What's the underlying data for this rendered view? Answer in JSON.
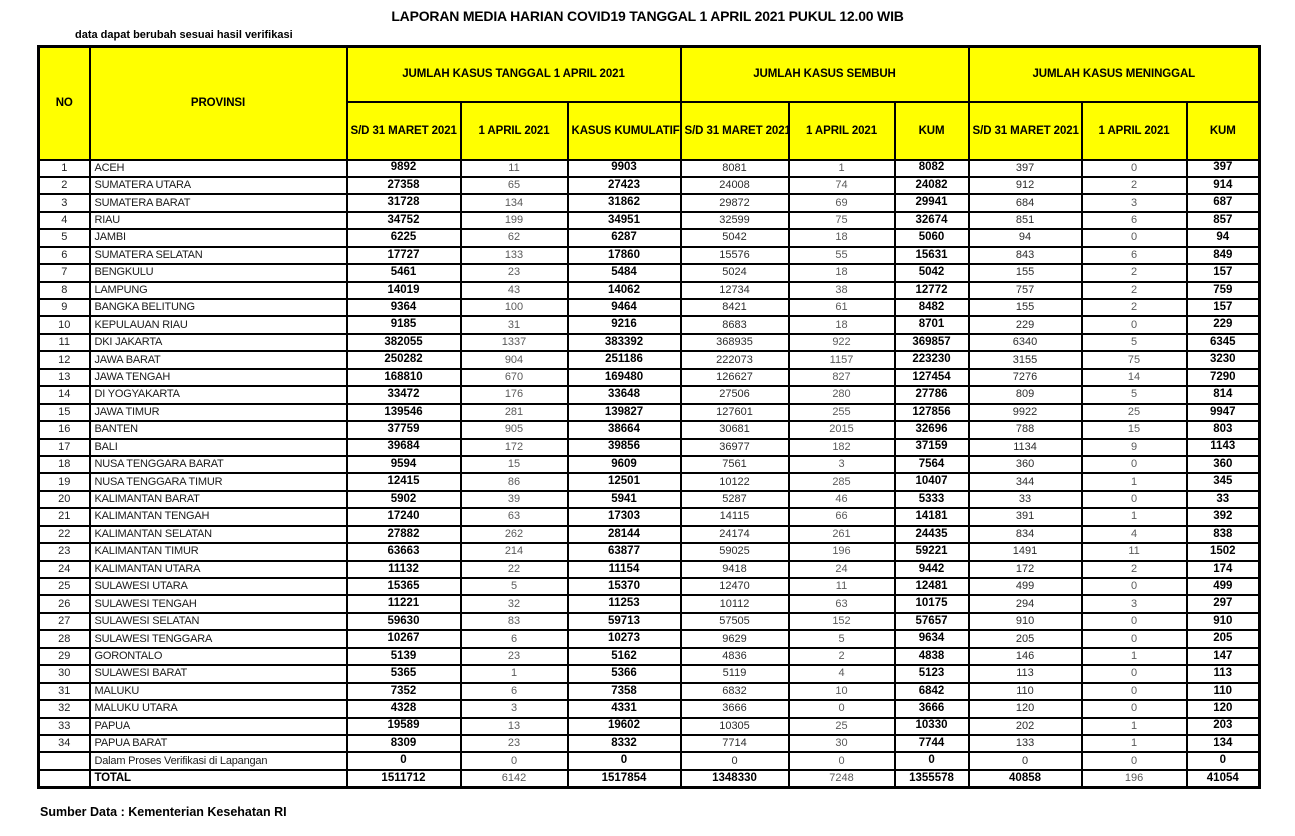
{
  "title": "LAPORAN MEDIA HARIAN COVID19 TANGGAL 1 APRIL 2021 PUKUL 12.00 WIB",
  "note": "data dapat berubah sesuai hasil verifikasi",
  "source": "Sumber Data : Kementerian Kesehatan RI",
  "colors": {
    "header_bg": "#FFFF00",
    "border": "#000000",
    "bold_value": "#000000",
    "muted_value": "#5a5a5a"
  },
  "table": {
    "col_no": "NO",
    "col_provinsi": "PROVINSI",
    "groups": [
      {
        "label": "JUMLAH KASUS TANGGAL 1 APRIL 2021",
        "sub": [
          "S/D 31 MARET 2021",
          "1 APRIL 2021",
          "KASUS KUMULATIF"
        ]
      },
      {
        "label": "JUMLAH KASUS SEMBUH",
        "sub": [
          "S/D 31 MARET 2021",
          "1 APRIL 2021",
          "KUM"
        ]
      },
      {
        "label": "JUMLAH KASUS MENINGGAL",
        "sub": [
          "S/D 31 MARET 2021",
          "1 APRIL 2021",
          "KUM"
        ]
      }
    ],
    "rows": [
      [
        1,
        "ACEH",
        9892,
        11,
        9903,
        8081,
        1,
        8082,
        397,
        0,
        397
      ],
      [
        2,
        "SUMATERA UTARA",
        27358,
        65,
        27423,
        24008,
        74,
        24082,
        912,
        2,
        914
      ],
      [
        3,
        "SUMATERA BARAT",
        31728,
        134,
        31862,
        29872,
        69,
        29941,
        684,
        3,
        687
      ],
      [
        4,
        "RIAU",
        34752,
        199,
        34951,
        32599,
        75,
        32674,
        851,
        6,
        857
      ],
      [
        5,
        "JAMBI",
        6225,
        62,
        6287,
        5042,
        18,
        5060,
        94,
        0,
        94
      ],
      [
        6,
        "SUMATERA SELATAN",
        17727,
        133,
        17860,
        15576,
        55,
        15631,
        843,
        6,
        849
      ],
      [
        7,
        "BENGKULU",
        5461,
        23,
        5484,
        5024,
        18,
        5042,
        155,
        2,
        157
      ],
      [
        8,
        "LAMPUNG",
        14019,
        43,
        14062,
        12734,
        38,
        12772,
        757,
        2,
        759
      ],
      [
        9,
        "BANGKA BELITUNG",
        9364,
        100,
        9464,
        8421,
        61,
        8482,
        155,
        2,
        157
      ],
      [
        10,
        "KEPULAUAN RIAU",
        9185,
        31,
        9216,
        8683,
        18,
        8701,
        229,
        0,
        229
      ],
      [
        11,
        "DKI JAKARTA",
        382055,
        1337,
        383392,
        368935,
        922,
        369857,
        6340,
        5,
        6345
      ],
      [
        12,
        "JAWA BARAT",
        250282,
        904,
        251186,
        222073,
        1157,
        223230,
        3155,
        75,
        3230
      ],
      [
        13,
        "JAWA TENGAH",
        168810,
        670,
        169480,
        126627,
        827,
        127454,
        7276,
        14,
        7290
      ],
      [
        14,
        "DI YOGYAKARTA",
        33472,
        176,
        33648,
        27506,
        280,
        27786,
        809,
        5,
        814
      ],
      [
        15,
        "JAWA TIMUR",
        139546,
        281,
        139827,
        127601,
        255,
        127856,
        9922,
        25,
        9947
      ],
      [
        16,
        "BANTEN",
        37759,
        905,
        38664,
        30681,
        2015,
        32696,
        788,
        15,
        803
      ],
      [
        17,
        "BALI",
        39684,
        172,
        39856,
        36977,
        182,
        37159,
        1134,
        9,
        1143
      ],
      [
        18,
        "NUSA TENGGARA BARAT",
        9594,
        15,
        9609,
        7561,
        3,
        7564,
        360,
        0,
        360
      ],
      [
        19,
        "NUSA TENGGARA TIMUR",
        12415,
        86,
        12501,
        10122,
        285,
        10407,
        344,
        1,
        345
      ],
      [
        20,
        "KALIMANTAN BARAT",
        5902,
        39,
        5941,
        5287,
        46,
        5333,
        33,
        0,
        33
      ],
      [
        21,
        "KALIMANTAN TENGAH",
        17240,
        63,
        17303,
        14115,
        66,
        14181,
        391,
        1,
        392
      ],
      [
        22,
        "KALIMANTAN SELATAN",
        27882,
        262,
        28144,
        24174,
        261,
        24435,
        834,
        4,
        838
      ],
      [
        23,
        "KALIMANTAN TIMUR",
        63663,
        214,
        63877,
        59025,
        196,
        59221,
        1491,
        11,
        1502
      ],
      [
        24,
        "KALIMANTAN UTARA",
        11132,
        22,
        11154,
        9418,
        24,
        9442,
        172,
        2,
        174
      ],
      [
        25,
        "SULAWESI UTARA",
        15365,
        5,
        15370,
        12470,
        11,
        12481,
        499,
        0,
        499
      ],
      [
        26,
        "SULAWESI TENGAH",
        11221,
        32,
        11253,
        10112,
        63,
        10175,
        294,
        3,
        297
      ],
      [
        27,
        "SULAWESI SELATAN",
        59630,
        83,
        59713,
        57505,
        152,
        57657,
        910,
        0,
        910
      ],
      [
        28,
        "SULAWESI TENGGARA",
        10267,
        6,
        10273,
        9629,
        5,
        9634,
        205,
        0,
        205
      ],
      [
        29,
        "GORONTALO",
        5139,
        23,
        5162,
        4836,
        2,
        4838,
        146,
        1,
        147
      ],
      [
        30,
        "SULAWESI BARAT",
        5365,
        1,
        5366,
        5119,
        4,
        5123,
        113,
        0,
        113
      ],
      [
        31,
        "MALUKU",
        7352,
        6,
        7358,
        6832,
        10,
        6842,
        110,
        0,
        110
      ],
      [
        32,
        "MALUKU UTARA",
        4328,
        3,
        4331,
        3666,
        0,
        3666,
        120,
        0,
        120
      ],
      [
        33,
        "PAPUA",
        19589,
        13,
        19602,
        10305,
        25,
        10330,
        202,
        1,
        203
      ],
      [
        34,
        "PAPUA BARAT",
        8309,
        23,
        8332,
        7714,
        30,
        7744,
        133,
        1,
        134
      ]
    ],
    "verification_row": {
      "label": "Dalam Proses Verifikasi di Lapangan",
      "values": [
        0,
        0,
        0,
        0,
        0,
        0,
        0,
        0,
        0
      ]
    },
    "total_row": {
      "label": "TOTAL",
      "values": [
        1511712,
        6142,
        1517854,
        1348330,
        7248,
        1355578,
        40858,
        196,
        41054
      ]
    }
  }
}
